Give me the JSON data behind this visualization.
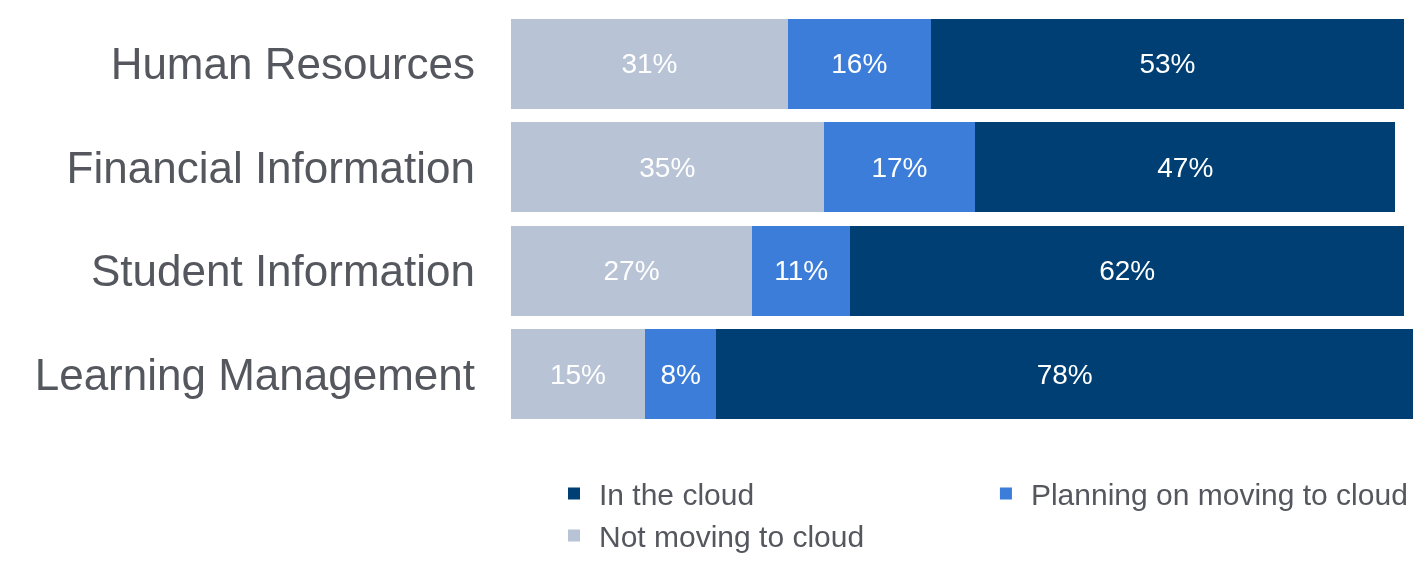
{
  "chart_data": {
    "type": "bar",
    "orientation": "horizontal",
    "stacked": true,
    "legend": "bottom",
    "categories": [
      "Human Resources",
      "Financial Information",
      "Student Information",
      "Learning Management"
    ],
    "series": [
      {
        "name": "Not moving to cloud",
        "color": "#b8c4d6",
        "values": [
          31,
          35,
          27,
          15
        ],
        "value_labels": [
          "31%",
          "35%",
          "27%",
          "15%"
        ]
      },
      {
        "name": "Planning on moving to cloud",
        "color": "#3b7dd8",
        "values": [
          16,
          17,
          11,
          8
        ],
        "value_labels": [
          "16%",
          "17%",
          "11%",
          "8%"
        ]
      },
      {
        "name": "In the cloud",
        "color": "#003f73",
        "values": [
          53,
          47,
          62,
          78
        ],
        "value_labels": [
          "53%",
          "47%",
          "62%",
          "78%"
        ]
      }
    ]
  }
}
